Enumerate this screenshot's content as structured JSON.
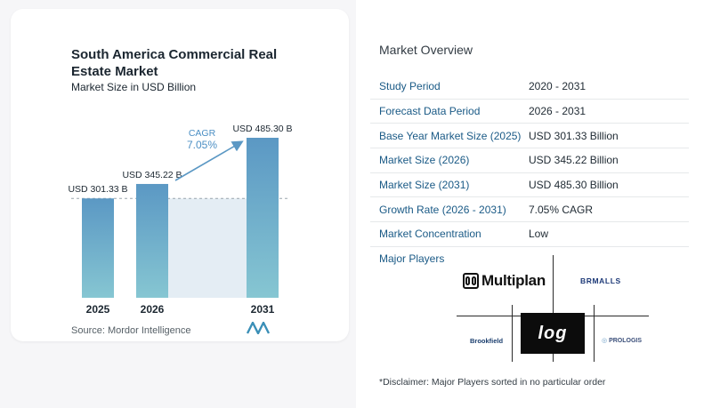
{
  "chart_data": {
    "type": "bar",
    "title": "South America Commercial Real Estate Market",
    "subtitle": "Market Size in USD Billion",
    "categories": [
      "2025",
      "2026",
      "2031"
    ],
    "values": [
      301.33,
      345.22,
      485.3
    ],
    "data_labels": [
      "USD 301.33 B",
      "USD 345.22 B",
      "USD 485.30 B"
    ],
    "annotation": {
      "label": "CAGR",
      "value": "7.05%"
    },
    "xlabel": "",
    "ylabel": "",
    "ylim": [
      0,
      500
    ],
    "grid": false,
    "colors": {
      "bar_top": "#5b98c4",
      "bar_bottom": "#86c6d2",
      "band": "#e4edf4",
      "arrow": "#5b98c4",
      "cagr_text": "#4c8fc4"
    }
  },
  "source": "Source:  Mordor Intelligence",
  "overview": {
    "title": "Market Overview",
    "rows": [
      {
        "label": "Study Period",
        "value": "2020 - 2031"
      },
      {
        "label": "Forecast Data Period",
        "value": "2026 - 2031"
      },
      {
        "label": "Base Year Market Size (2025)",
        "value": "USD 301.33 Billion"
      },
      {
        "label": "Market Size (2026)",
        "value": "USD 345.22 Billion"
      },
      {
        "label": "Market Size (2031)",
        "value": "USD 485.30 Billion"
      },
      {
        "label": "Growth Rate (2026 - 2031)",
        "value": "7.05% CAGR"
      },
      {
        "label": "Market Concentration",
        "value": "Low"
      }
    ]
  },
  "players": {
    "title": "Major Players",
    "logos": [
      "Multiplan",
      "BRMALLS",
      "Brookfield",
      "log",
      "PROLOGIS"
    ]
  },
  "disclaimer": "*Disclaimer: Major Players sorted in no particular order"
}
